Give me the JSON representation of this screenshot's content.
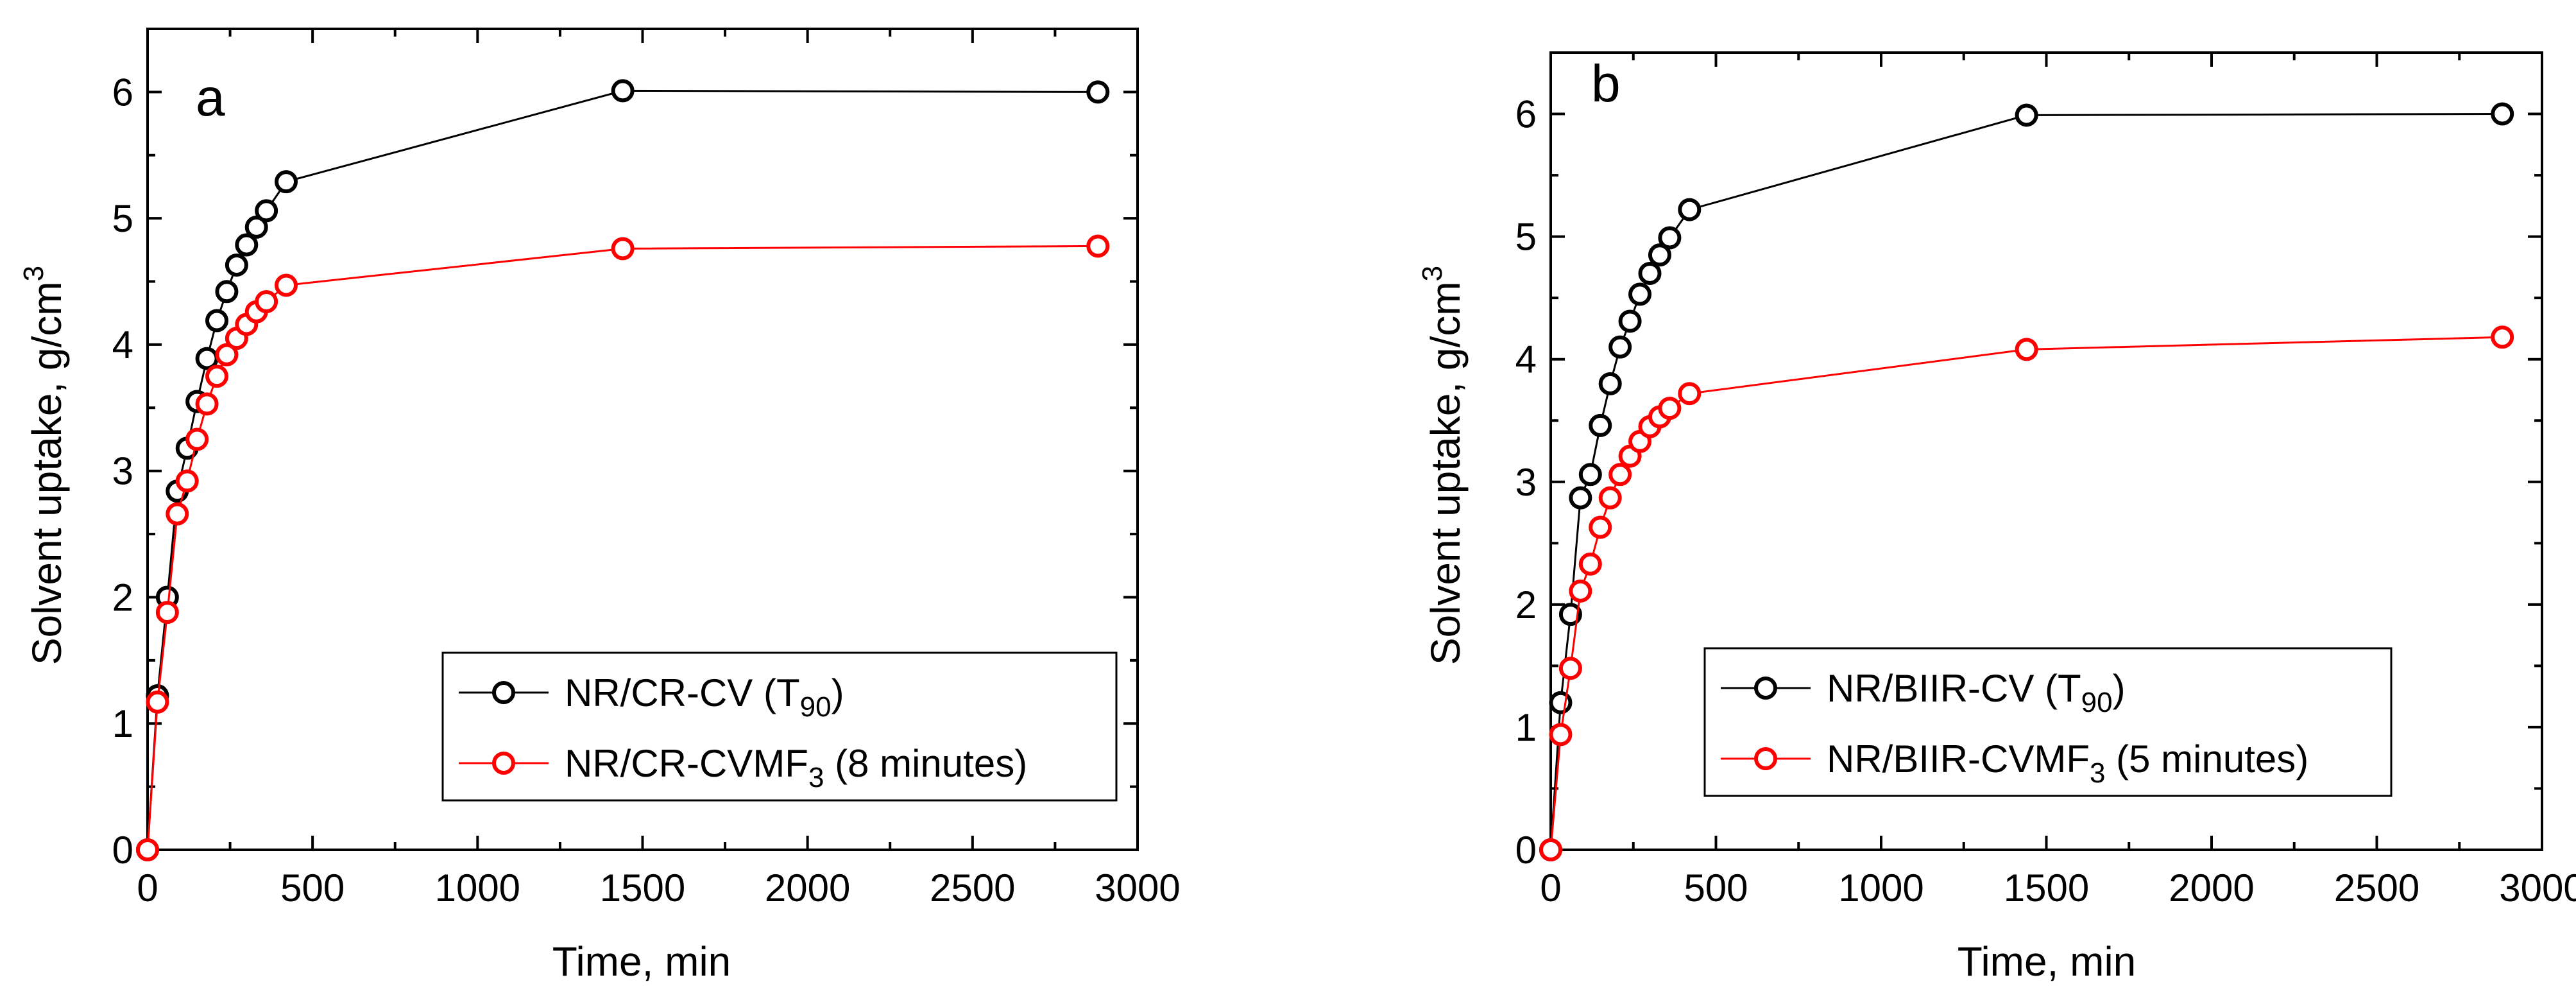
{
  "colors": {
    "series_1": "#000000",
    "series_2": "#ff0000"
  },
  "chart_data": [
    {
      "type": "line",
      "panel_label": "a",
      "xlabel": "Time, min",
      "ylabel_main": "Solvent uptake, g/cm",
      "ylabel_sup": "3",
      "xlim": [
        0,
        3000
      ],
      "ylim": [
        0,
        6.5
      ],
      "xticks": [
        0,
        500,
        1000,
        1500,
        2000,
        2500,
        3000
      ],
      "yticks": [
        0,
        1,
        2,
        3,
        4,
        5,
        6
      ],
      "legend_position": "bottom-right",
      "series": [
        {
          "name": "NR/CR-CV (T90)",
          "legend": {
            "text": "NR/CR-CV (T",
            "sub": "90",
            "after": ")"
          },
          "color": "#000000",
          "x": [
            0,
            30,
            60,
            90,
            120,
            150,
            180,
            210,
            240,
            270,
            300,
            330,
            360,
            420,
            1440,
            2880
          ],
          "y": [
            0,
            1.22,
            2.0,
            2.84,
            3.18,
            3.55,
            3.89,
            4.19,
            4.42,
            4.63,
            4.79,
            4.93,
            5.06,
            5.29,
            6.01,
            6.0
          ]
        },
        {
          "name": "NR/CR-CVMF3 (8 minutes)",
          "legend": {
            "text": "NR/CR-CVMF",
            "sub": "3",
            "after": " (8 minutes)"
          },
          "color": "#ff0000",
          "x": [
            0,
            30,
            60,
            90,
            120,
            150,
            180,
            210,
            240,
            270,
            300,
            330,
            360,
            420,
            1440,
            2880
          ],
          "y": [
            0,
            1.17,
            1.88,
            2.66,
            2.92,
            3.25,
            3.53,
            3.75,
            3.92,
            4.05,
            4.16,
            4.26,
            4.34,
            4.47,
            4.76,
            4.78
          ]
        }
      ]
    },
    {
      "type": "line",
      "panel_label": "b",
      "xlabel": "Time, min",
      "ylabel_main": "Solvent uptake, g/cm",
      "ylabel_sup": "3",
      "xlim": [
        0,
        3000
      ],
      "ylim": [
        0,
        6.5
      ],
      "xticks": [
        0,
        500,
        1000,
        1500,
        2000,
        2500,
        3000
      ],
      "yticks": [
        0,
        1,
        2,
        3,
        4,
        5,
        6
      ],
      "legend_position": "bottom-right",
      "series": [
        {
          "name": "NR/BIIR-CV (T90)",
          "legend": {
            "text": "NR/BIIR-CV (T",
            "sub": "90",
            "after": ")"
          },
          "color": "#000000",
          "x": [
            0,
            30,
            60,
            90,
            120,
            150,
            180,
            210,
            240,
            270,
            300,
            330,
            360,
            420,
            1440,
            2880
          ],
          "y": [
            0,
            1.2,
            1.92,
            2.87,
            3.06,
            3.46,
            3.8,
            4.1,
            4.31,
            4.53,
            4.7,
            4.85,
            4.99,
            5.22,
            5.99,
            6.0
          ]
        },
        {
          "name": "NR/BIIR-CVMF3 (5 minutes)",
          "legend": {
            "text": "NR/BIIR-CVMF",
            "sub": "3",
            "after": " (5 minutes)"
          },
          "color": "#ff0000",
          "x": [
            0,
            30,
            60,
            90,
            120,
            150,
            180,
            210,
            240,
            270,
            300,
            330,
            360,
            420,
            1440,
            2880
          ],
          "y": [
            0,
            0.94,
            1.48,
            2.11,
            2.33,
            2.63,
            2.87,
            3.06,
            3.21,
            3.33,
            3.45,
            3.53,
            3.6,
            3.72,
            4.08,
            4.18
          ]
        }
      ]
    }
  ]
}
